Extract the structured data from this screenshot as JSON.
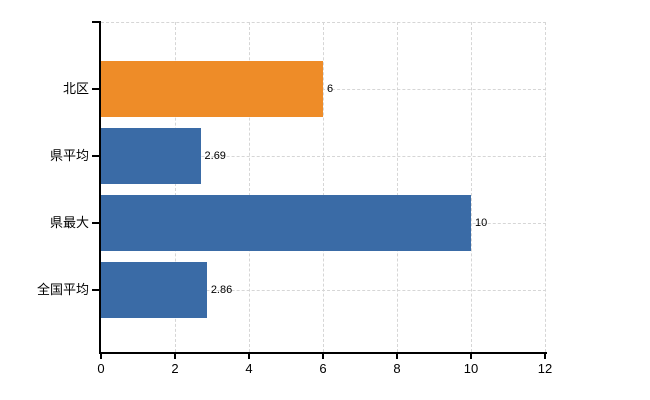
{
  "chart_data": {
    "type": "bar",
    "orientation": "horizontal",
    "title": "",
    "xlabel": "",
    "ylabel": "",
    "categories": [
      "北区",
      "県平均",
      "県最大",
      "全国平均"
    ],
    "values": [
      6,
      2.69,
      10,
      2.86
    ],
    "value_labels": [
      "6",
      "2.69",
      "10",
      "2.86"
    ],
    "bar_colors": [
      "#ee8c28",
      "#3a6ba6",
      "#3a6ba6",
      "#3a6ba6"
    ],
    "highlighted_category": "北区",
    "xlim": [
      0,
      12
    ],
    "x_ticks": [
      0,
      2,
      4,
      6,
      8,
      10,
      12
    ],
    "x_tick_labels": [
      "0",
      "2",
      "4",
      "6",
      "8",
      "10",
      "12"
    ],
    "grid": true,
    "legend": false,
    "colors": {
      "bar_default": "#3a6ba6",
      "bar_highlight": "#ee8c28",
      "axis": "#000000",
      "gridline": "#d6d6d6",
      "text": "#000000",
      "background": "#ffffff"
    }
  }
}
